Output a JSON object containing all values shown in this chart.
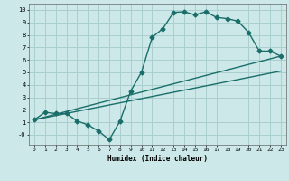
{
  "xlabel": "Humidex (Indice chaleur)",
  "bg_color": "#cce8e8",
  "grid_color": "#aacfcf",
  "line_color": "#1a6e6a",
  "xlim": [
    -0.5,
    23.5
  ],
  "ylim": [
    -0.8,
    10.5
  ],
  "xticks": [
    0,
    1,
    2,
    3,
    4,
    5,
    6,
    7,
    8,
    9,
    10,
    11,
    12,
    13,
    14,
    15,
    16,
    17,
    18,
    19,
    20,
    21,
    22,
    23
  ],
  "yticks": [
    0,
    1,
    2,
    3,
    4,
    5,
    6,
    7,
    8,
    9,
    10
  ],
  "ytick_labels": [
    "-0",
    "1",
    "2",
    "3",
    "4",
    "5",
    "6",
    "7",
    "8",
    "9",
    "10"
  ],
  "line1_x": [
    0,
    1,
    2,
    3,
    4,
    5,
    6,
    7,
    8,
    9,
    10,
    11,
    12,
    13,
    14,
    15,
    16,
    17,
    18,
    19,
    20,
    21,
    22,
    23
  ],
  "line1_y": [
    1.2,
    1.8,
    1.7,
    1.7,
    1.1,
    0.8,
    0.3,
    -0.4,
    1.1,
    3.5,
    5.0,
    7.8,
    8.5,
    9.8,
    9.85,
    9.6,
    9.85,
    9.4,
    9.3,
    9.1,
    8.2,
    6.7,
    6.7,
    6.3
  ],
  "line2_x": [
    0,
    23
  ],
  "line2_y": [
    1.2,
    6.3
  ],
  "line3_x": [
    0,
    23
  ],
  "line3_y": [
    1.2,
    5.1
  ],
  "marker_size": 2.5,
  "line_width": 1.0
}
